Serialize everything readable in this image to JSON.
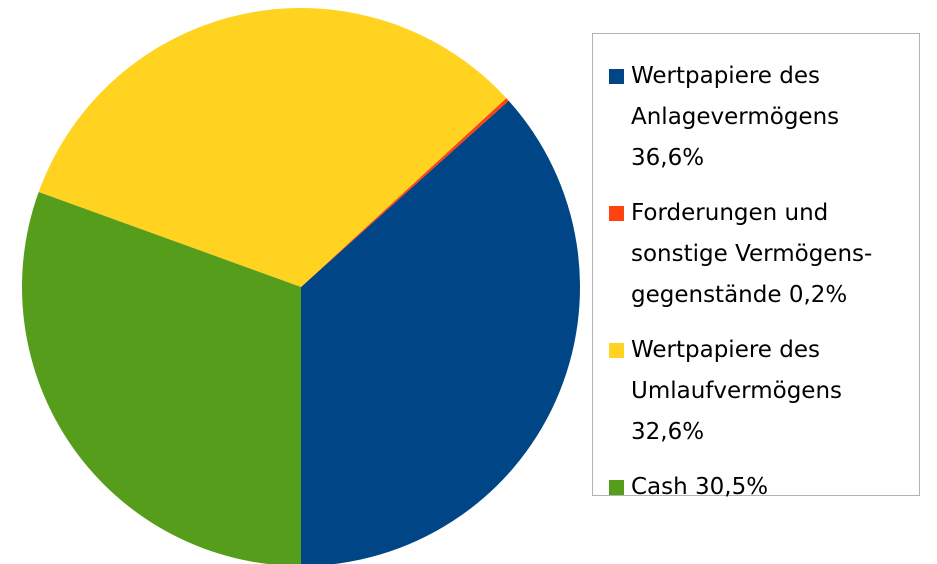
{
  "chart_data": {
    "type": "pie",
    "categories": [
      "Wertpapiere des Anlagevermögens",
      "Forderungen und sonstige Vermögens­gegenstände",
      "Wertpapiere des Umlaufvermögens",
      "Cash"
    ],
    "values": [
      36.6,
      0.2,
      32.6,
      30.5
    ],
    "value_labels": [
      "36,6%",
      "0,2%",
      "32,6%",
      "30,5%"
    ],
    "colors": [
      "#004586",
      "#ff420e",
      "#ffd320",
      "#579d1c"
    ],
    "legend": "right"
  }
}
